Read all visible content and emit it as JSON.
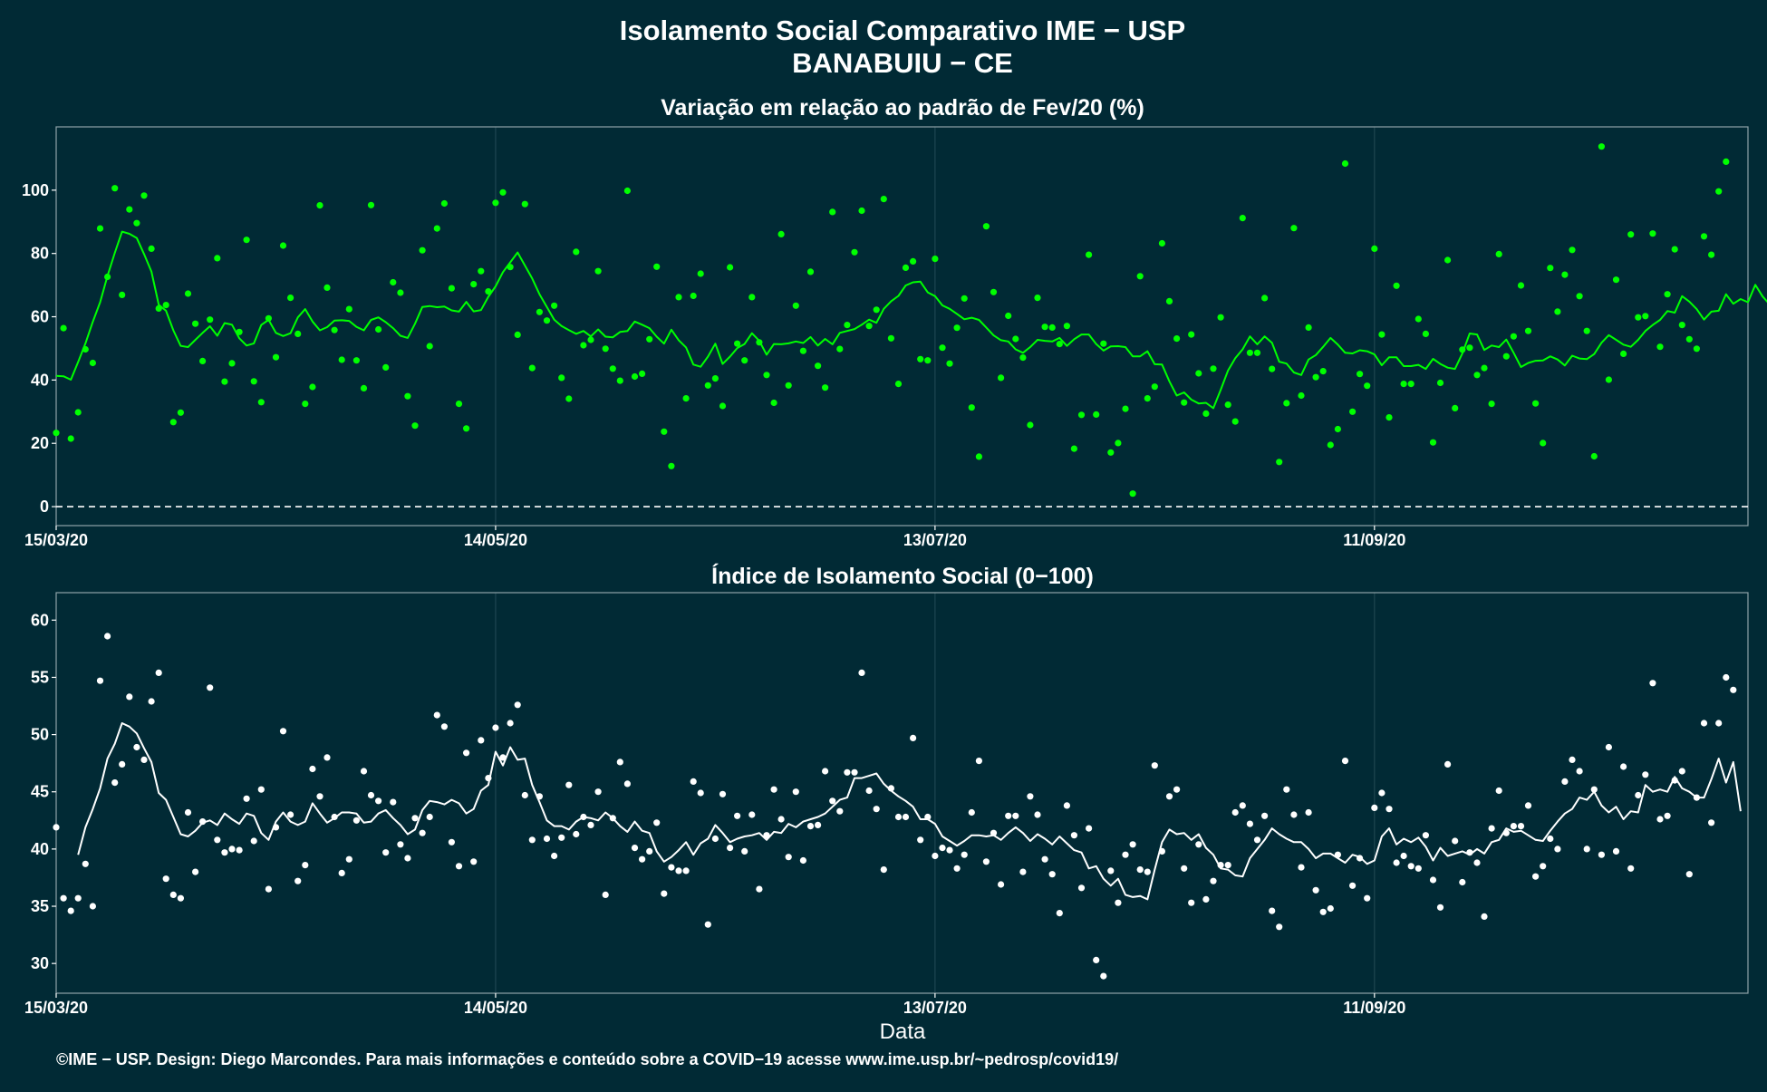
{
  "header": {
    "title": "Isolamento Social Comparativo IME − USP",
    "subtitle": "BANABUIU − CE"
  },
  "footer": {
    "xlabel": "Data",
    "credit": "©IME − USP. Design: Diego Marcondes. Para mais informações e conteúdo sobre a COVID−19 acesse www.ime.usp.br/~pedrosp/covid19/"
  },
  "colors": {
    "background": "#012a35",
    "top_series": "#00ff00",
    "bottom_series": "#ffffff",
    "grid": "#1e4651",
    "text": "#ffffff"
  },
  "chart_data": [
    {
      "type": "scatter",
      "title": "Variação em relação ao padrão de Fev/20 (%)",
      "xlabel": "",
      "ylabel": "",
      "x_start": "2020-03-15",
      "x_ticks": [
        "15/03/20",
        "14/05/20",
        "13/07/20",
        "11/09/20"
      ],
      "xlim": [
        "2020-03-15",
        "2020-11-01"
      ],
      "ylim": [
        -6,
        120
      ],
      "y_ticks": [
        0,
        20,
        40,
        60,
        80,
        100
      ],
      "reference_line": 0,
      "grid": true,
      "series": [
        {
          "style": "points",
          "color": "#00ff00",
          "values": [
            23.3,
            56.4,
            21.5,
            29.8,
            49.7,
            45.4,
            87.9,
            72.6,
            100.6,
            66.9,
            93.9,
            89.6,
            98.3,
            81.5,
            62.6,
            63.7,
            26.7,
            29.7,
            67.3,
            57.8,
            46,
            59.1,
            78.5,
            39.5,
            45.3,
            55.2,
            84.3,
            39.6,
            33,
            59.5,
            47.2,
            82.5,
            66,
            54.6,
            32.5,
            37.8,
            95.2,
            69.2,
            55.8,
            46.4,
            62.4,
            46.2,
            37.4,
            95.3,
            56,
            44,
            70.9,
            67.6,
            34.9,
            25.6,
            81,
            50.7,
            87.9,
            95.8,
            69,
            32.5,
            24.7,
            70.3,
            74.4,
            68,
            96,
            99.3,
            75.7,
            54.3,
            95.6,
            43.8,
            61.5,
            58.8,
            63.5,
            40.7,
            34.1,
            80.5,
            51,
            52.7,
            74.4,
            49.9,
            43.6,
            39.8,
            99.8,
            41.1,
            42,
            52.9,
            75.8,
            23.7,
            12.8,
            66.2,
            34.2,
            66.6,
            73.6,
            38.3,
            40.5,
            31.8,
            75.6,
            51.5,
            46.2,
            66.2,
            51.9,
            41.6,
            32.8,
            86.1,
            38.3,
            63.5,
            49.2,
            74.2,
            44.5,
            37.6,
            93.1,
            49.8,
            57.4,
            80.4,
            93.5,
            57.1,
            62.2,
            97.2,
            53.2,
            38.8,
            75.5,
            77.5,
            46.6,
            46.2,
            78.3,
            50.2,
            45.2,
            56.5,
            65.8,
            31.3,
            15.8,
            88.6,
            67.8,
            40.7,
            60.3,
            53,
            47.1,
            25.8,
            66,
            56.8,
            56.6,
            51.4,
            57.1,
            18.3,
            29,
            79.6,
            29.1,
            51.5,
            17.1,
            20.1,
            30.9,
            4.1,
            72.8,
            34.2,
            37.9,
            83.2,
            64.9,
            53.1,
            32.9,
            54.4,
            42.1,
            29.4,
            43.6,
            59.8,
            32.2,
            26.9,
            91.2,
            48.6,
            48.6,
            65.9,
            43.5,
            14.1,
            32.7,
            88,
            35.1,
            56.6,
            40.9,
            42.8,
            19.5,
            24.5,
            108.4,
            30,
            41.9,
            38.2,
            81.5,
            54.4,
            28.2,
            69.8,
            38.8,
            38.8,
            59.3,
            54.6,
            20.3,
            39.1,
            77.9,
            31.1,
            49.6,
            50.2,
            41.6,
            43.8,
            32.5,
            79.8,
            47.5,
            53.8,
            69.9,
            55.5,
            32.6,
            20.1,
            75.4,
            61.6,
            73.3,
            81.1,
            66.5,
            55.5,
            15.9,
            113.8,
            40.1,
            71.7,
            48.3,
            86,
            59.8,
            60.2,
            86.3,
            50.5,
            67.1,
            81.3,
            57.4,
            52.9,
            49.9,
            85.4,
            79.6,
            99.6,
            109
          ]
        },
        {
          "style": "line",
          "color": "#00ff00",
          "x_start_index": 0,
          "values": [
            41.3,
            41.2,
            40.1,
            45.7,
            51.6,
            58.4,
            64.6,
            72.9,
            80.2,
            86.9,
            86.2,
            84.9,
            79.8,
            74.3,
            63.8,
            61.9,
            55.7,
            50.8,
            50.4,
            52.7,
            54.9,
            57,
            54,
            58,
            57.5,
            53.2,
            50.9,
            51.6,
            57.4,
            59,
            54.9,
            53.9,
            54.8,
            59.8,
            62.4,
            58.5,
            55.7,
            56.7,
            58.8,
            58.9,
            58.7,
            56.8,
            55.7,
            59,
            59.8,
            58.3,
            56.4,
            54,
            53.3,
            57.8,
            63.1,
            63.4,
            63,
            63.2,
            62,
            61.6,
            64.7,
            61.7,
            62.1,
            66.3,
            69.6,
            74.1,
            77.2,
            80.3,
            76.2,
            72.1,
            67.1,
            63.1,
            59.1,
            57.1,
            55.8,
            54.6,
            55.5,
            53.8,
            56,
            53.7,
            53.5,
            55.2,
            55.5,
            58.5,
            57.5,
            56.4,
            53.7,
            51.5,
            55.9,
            52.6,
            50.3,
            44.9,
            44.2,
            47.4,
            51.5,
            45.1,
            47.4,
            50.1,
            51.4,
            54.8,
            52.4,
            48,
            51.4,
            51.3,
            51.6,
            52.2,
            51.7,
            53.6,
            50.9,
            53,
            51.3,
            54.9,
            55.5,
            56.1,
            57.5,
            59.1,
            58.1,
            62.5,
            64.9,
            66.6,
            69.9,
            70.9,
            71.1,
            67.7,
            66.5,
            63.6,
            62.5,
            60.9,
            59.2,
            59.7,
            59,
            56.6,
            54.1,
            52.6,
            52.2,
            49.7,
            48.6,
            50.4,
            52.7,
            52.4,
            52.2,
            53.3,
            50.8,
            52.9,
            54.4,
            54.4,
            51.4,
            49.3,
            50.6,
            50.7,
            50.4,
            47.5,
            47.5,
            49.1,
            45,
            44.9,
            39.6,
            35.1,
            36.1,
            33.8,
            32.6,
            32.8,
            31.1,
            36.9,
            43,
            46.9,
            49.7,
            53.8,
            51.3,
            53.8,
            51.8,
            45.8,
            45.2,
            42.4,
            41.6,
            46.5,
            47.9,
            50.5,
            53.3,
            51.2,
            48.6,
            48.4,
            49.4,
            49.1,
            48.1,
            44.7,
            47.2,
            47.2,
            44.4,
            44.4,
            44.8,
            43.5,
            46.7,
            45.1,
            43.9,
            43.5,
            48.4,
            54.7,
            54.4,
            49.5,
            50.9,
            50.4,
            52.8,
            48.6,
            44.1,
            45.4,
            46.1,
            46.2,
            47.5,
            46.5,
            44.6,
            47.7,
            46.8,
            46.6,
            48.2,
            51.8,
            54.2,
            52.7,
            51.2,
            50.5,
            52.7,
            55.5,
            57.4,
            59,
            61.8,
            61.3,
            66.5,
            64.8,
            62.4,
            59.1,
            61.6,
            61.9,
            67.1,
            64.1,
            65.6,
            64.6,
            70.1,
            66.4,
            63.8,
            63.3,
            63.3,
            67.2,
            71.8,
            76.3
          ]
        }
      ]
    },
    {
      "type": "scatter",
      "title": "Índice de Isolamento Social (0−100)",
      "xlabel": "Data",
      "ylabel": "",
      "x_start": "2020-03-15",
      "x_ticks": [
        "15/03/20",
        "14/05/20",
        "13/07/20",
        "11/09/20"
      ],
      "xlim": [
        "2020-03-15",
        "2020-11-01"
      ],
      "ylim": [
        27.4,
        62.4
      ],
      "y_ticks": [
        30,
        35,
        40,
        45,
        50,
        55,
        60
      ],
      "grid": true,
      "series": [
        {
          "style": "points",
          "color": "#ffffff",
          "values": [
            41.9,
            35.7,
            34.6,
            35.7,
            38.7,
            35,
            54.7,
            58.6,
            45.8,
            47.4,
            53.3,
            48.9,
            47.8,
            52.9,
            55.4,
            37.4,
            36,
            35.7,
            43.2,
            38,
            42.4,
            54.1,
            40.8,
            39.7,
            40,
            39.9,
            44.4,
            40.7,
            45.2,
            36.5,
            41.9,
            50.3,
            43,
            37.2,
            38.6,
            47,
            44.6,
            48,
            42.8,
            37.9,
            39.1,
            42.5,
            46.8,
            44.7,
            44.2,
            39.7,
            44.1,
            40.4,
            39.2,
            42.7,
            41.4,
            42.8,
            51.7,
            50.7,
            40.6,
            38.5,
            48.4,
            38.9,
            49.5,
            46.2,
            50.6,
            48,
            51,
            52.6,
            44.7,
            40.8,
            44.6,
            40.9,
            39.4,
            41,
            45.6,
            41.3,
            42.8,
            42.1,
            45,
            36,
            42.7,
            47.6,
            45.7,
            40.1,
            39.1,
            39.8,
            42.3,
            36.1,
            38.4,
            38.1,
            38.1,
            45.9,
            44.9,
            33.4,
            40.9,
            44.8,
            40.1,
            42.9,
            39.8,
            43,
            36.5,
            41.2,
            45.2,
            42.6,
            39.3,
            45,
            39,
            42,
            42.1,
            46.8,
            44.2,
            43.3,
            46.7,
            46.7,
            55.4,
            45.1,
            43.5,
            38.2,
            45.3,
            42.8,
            42.8,
            49.7,
            40.8,
            42.8,
            39.4,
            40.1,
            39.9,
            38.3,
            39.5,
            43.2,
            47.7,
            38.9,
            41.4,
            36.9,
            42.9,
            42.9,
            38,
            44.6,
            43,
            39.1,
            37.8,
            34.4,
            43.8,
            41.2,
            36.6,
            41.8,
            30.3,
            28.9,
            38.1,
            35.3,
            39.5,
            40.4,
            38.2,
            38,
            47.3,
            39.8,
            44.6,
            45.2,
            38.3,
            35.3,
            40.4,
            35.6,
            37.2,
            38.6,
            38.6,
            43.2,
            43.8,
            42.2,
            40.8,
            42.9,
            34.6,
            33.2,
            45.2,
            43,
            38.4,
            43.2,
            36.4,
            34.5,
            34.8,
            39.5,
            47.7,
            36.8,
            39.2,
            35.7,
            43.6,
            44.9,
            43.5,
            38.8,
            39.4,
            38.5,
            38.3,
            41.2,
            37.3,
            34.9,
            47.4,
            40.7,
            37.1,
            39.7,
            38.8,
            34.1,
            41.8,
            45.1,
            41.4,
            42,
            42,
            43.8,
            37.6,
            38.5,
            40.9,
            40,
            45.9,
            47.8,
            46.8,
            40,
            45.2,
            39.5,
            48.9,
            39.8,
            47.2,
            38.3,
            44.7,
            46.5,
            54.5,
            42.6,
            42.9,
            46,
            46.8,
            37.8,
            44.5,
            51,
            42.3,
            51,
            55,
            53.9
          ]
        },
        {
          "style": "line",
          "color": "#ffffff",
          "x_start_index": 3,
          "values": [
            39.5,
            41.9,
            43.5,
            45.3,
            47.9,
            49.2,
            51,
            50.7,
            50.1,
            48.8,
            47.6,
            44.9,
            44.3,
            42.8,
            41.3,
            41.1,
            41.6,
            42.3,
            42.5,
            42.1,
            43.1,
            42.6,
            42.2,
            43.1,
            42.9,
            41.4,
            40.8,
            42.4,
            43.2,
            42.4,
            42.1,
            42.4,
            44,
            43.1,
            42.3,
            42.7,
            43.2,
            43.2,
            43.1,
            42.3,
            42.4,
            43.1,
            43.4,
            42.7,
            42.1,
            41.3,
            41.7,
            43.4,
            44.2,
            44.1,
            43.9,
            44.3,
            44,
            43.1,
            43.5,
            45.1,
            45.6,
            48.5,
            47.3,
            48.9,
            47.8,
            47.9,
            45.6,
            44.1,
            42.5,
            42,
            42,
            41.7,
            42.4,
            42.8,
            42.7,
            42.5,
            43.2,
            42.7,
            42,
            41.5,
            42.4,
            41.6,
            41.4,
            39.8,
            38.9,
            39.3,
            39.9,
            40.6,
            39.5,
            40.5,
            40.9,
            42.1,
            41.4,
            40.6,
            40.9,
            41.1,
            41.2,
            41.4,
            40.8,
            41.5,
            41.4,
            42.2,
            41.9,
            42.4,
            42.6,
            42.8,
            43.1,
            43.7,
            44.3,
            44.5,
            46.2,
            46.2,
            46.4,
            46.6,
            45.7,
            45.1,
            44.6,
            44.2,
            43.7,
            42.6,
            42.6,
            42.2,
            41.1,
            40.7,
            40.3,
            40.7,
            41.2,
            41.2,
            41.1,
            41.2,
            40.8,
            41.4,
            41.9,
            41.4,
            40.7,
            41.3,
            40.9,
            40.4,
            41.1,
            40.5,
            39.9,
            39.7,
            38.3,
            38.5,
            37.4,
            36.8,
            37.4,
            36,
            35.8,
            35.9,
            35.6,
            38.2,
            40.6,
            41.7,
            41.3,
            41.4,
            40.8,
            41.3,
            40.1,
            39.5,
            38.3,
            38.2,
            37.7,
            37.6,
            39.2,
            40,
            40.8,
            41.8,
            41.3,
            40.9,
            40.6,
            40.6,
            40,
            39.2,
            39.6,
            39.6,
            39.2,
            38.8,
            39.5,
            39.3,
            38.7,
            39,
            41.1,
            41.8,
            40.4,
            40.9,
            40.6,
            41,
            40.2,
            39,
            40.1,
            39.4,
            39.6,
            39.8,
            39.5,
            40,
            39.6,
            40.6,
            40.8,
            41.8,
            41.5,
            41.6,
            41.2,
            40.8,
            40.7,
            41.6,
            42.4,
            43.1,
            43.5,
            44.5,
            44.3,
            45,
            43.8,
            43.2,
            43.7,
            42.6,
            43.3,
            43.2,
            45.6,
            45,
            45.2,
            45,
            46.3,
            45.3,
            45,
            44.5,
            44.5,
            46.1,
            47.9,
            45.8,
            47.6,
            43.3
          ]
        }
      ]
    }
  ]
}
